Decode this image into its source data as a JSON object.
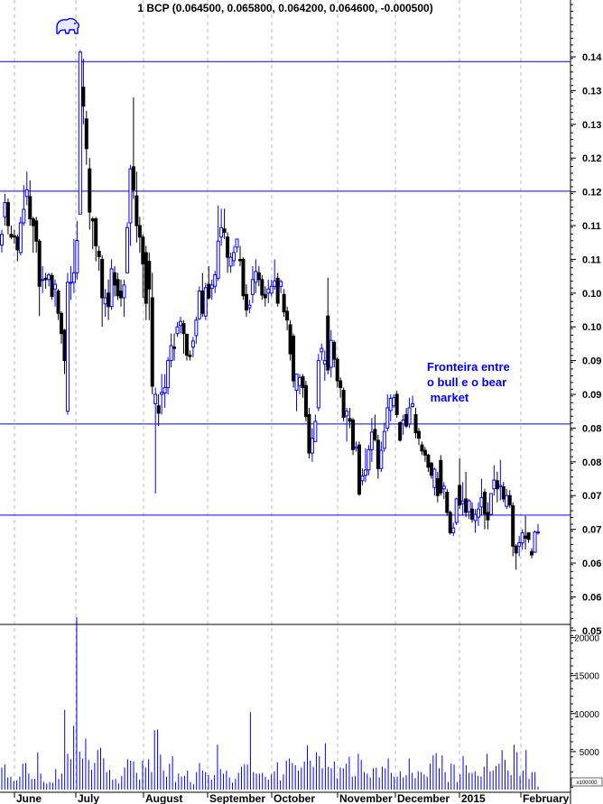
{
  "title": "1 BCP (0.064500, 0.065800, 0.064200, 0.064600, -0.000500)",
  "annotation": {
    "lines": [
      "Fronteira entre",
      "o bull e o bear",
      " market"
    ]
  },
  "icons": {
    "logo": "bear-icon"
  },
  "colors": {
    "up": "#0000ff",
    "down": "#000000",
    "lines": "#0000ff",
    "volume": "#0000ff",
    "grid": "#bbbbbb"
  },
  "chart_data": {
    "type": "candlestick",
    "title": "1 BCP (0.064500, 0.065800, 0.064200, 0.064600, -0.000500)",
    "x_labels": [
      "June",
      "July",
      "August",
      "September",
      "October",
      "November",
      "December",
      "2015",
      "February"
    ],
    "y_ticks": [
      0.135,
      0.13,
      0.125,
      0.12,
      0.115,
      0.11,
      0.105,
      0.1,
      0.095,
      0.09,
      0.085,
      0.08,
      0.075,
      0.07,
      0.065,
      0.06,
      0.055,
      0.05
    ],
    "y_tick_labels": [
      "0.14",
      "0.13",
      "0.13",
      "0.12",
      "0.12",
      "0.11",
      "0.11",
      "0.10",
      "0.10",
      "0.09",
      "0.09",
      "0.08",
      "0.08",
      "0.07",
      "0.07",
      "0.06",
      "0.06",
      "0.05"
    ],
    "ylim": [
      0.0505,
      0.1384
    ],
    "grid": "vertical dashed at month boundaries",
    "horizontal_lines": [
      0.1343,
      0.1151,
      0.0806,
      0.0671
    ],
    "candles_ohlc": [
      [
        0.1071,
        0.1094,
        0.106,
        0.1087
      ],
      [
        0.1113,
        0.1147,
        0.11,
        0.1134
      ],
      [
        0.1134,
        0.114,
        0.1087,
        0.11
      ],
      [
        0.1087,
        0.11,
        0.108,
        0.1083
      ],
      [
        0.1085,
        0.1094,
        0.1073,
        0.1083
      ],
      [
        0.1083,
        0.1087,
        0.1047,
        0.1064
      ],
      [
        0.106,
        0.1113,
        0.1056,
        0.1104
      ],
      [
        0.1104,
        0.116,
        0.11,
        0.1124
      ],
      [
        0.1143,
        0.118,
        0.113,
        0.1153
      ],
      [
        0.1143,
        0.1167,
        0.11,
        0.111
      ],
      [
        0.111,
        0.1113,
        0.106,
        0.11
      ],
      [
        0.1107,
        0.1113,
        0.106,
        0.1077
      ],
      [
        0.1077,
        0.108,
        0.0966,
        0.101
      ],
      [
        0.102,
        0.104,
        0.1,
        0.102
      ],
      [
        0.1022,
        0.103,
        0.1006,
        0.102
      ],
      [
        0.102,
        0.103,
        0.101,
        0.1027
      ],
      [
        0.1026,
        0.103,
        0.099,
        0.0995
      ],
      [
        0.1006,
        0.102,
        0.098,
        0.1013
      ],
      [
        0.1003,
        0.1006,
        0.096,
        0.097
      ],
      [
        0.097,
        0.0973,
        0.0925,
        0.094
      ],
      [
        0.0945,
        0.0947,
        0.088,
        0.09
      ],
      [
        0.0825,
        0.103,
        0.082,
        0.1016
      ],
      [
        0.1016,
        0.104,
        0.099,
        0.1016
      ],
      [
        0.1016,
        0.108,
        0.1,
        0.103
      ],
      [
        0.103,
        0.1107,
        0.102,
        0.1078
      ],
      [
        0.1117,
        0.136,
        0.1117,
        0.1357
      ],
      [
        0.1305,
        0.1347,
        0.125,
        0.1277
      ],
      [
        0.1258,
        0.127,
        0.119,
        0.1214
      ],
      [
        0.1184,
        0.12,
        0.1094,
        0.112
      ],
      [
        0.111,
        0.1113,
        0.1065,
        0.1107
      ],
      [
        0.111,
        0.1113,
        0.1047,
        0.107
      ],
      [
        0.1062,
        0.107,
        0.1033,
        0.1054
      ],
      [
        0.105,
        0.1056,
        0.095,
        0.0993
      ],
      [
        0.0984,
        0.1006,
        0.0965,
        0.0993
      ],
      [
        0.1,
        0.102,
        0.096,
        0.098
      ],
      [
        0.098,
        0.105,
        0.0975,
        0.1036
      ],
      [
        0.103,
        0.104,
        0.0995,
        0.1012
      ],
      [
        0.102,
        0.103,
        0.099,
        0.0996
      ],
      [
        0.1003,
        0.102,
        0.098,
        0.0993
      ],
      [
        0.0993,
        0.102,
        0.0965,
        0.1012
      ],
      [
        0.103,
        0.1105,
        0.103,
        0.1097
      ],
      [
        0.1104,
        0.119,
        0.107,
        0.1184
      ],
      [
        0.1187,
        0.129,
        0.114,
        0.1153
      ],
      [
        0.1144,
        0.118,
        0.1075,
        0.11
      ],
      [
        0.11,
        0.1113,
        0.106,
        0.1083
      ],
      [
        0.1083,
        0.1087,
        0.0993,
        0.1043
      ],
      [
        0.106,
        0.107,
        0.096,
        0.0985
      ],
      [
        0.1047,
        0.106,
        0.096,
        0.1006
      ],
      [
        0.0993,
        0.103,
        0.085,
        0.0862
      ],
      [
        0.0836,
        0.086,
        0.0703,
        0.085
      ],
      [
        0.0833,
        0.085,
        0.0803,
        0.0822
      ],
      [
        0.085,
        0.088,
        0.082,
        0.0853
      ],
      [
        0.0852,
        0.088,
        0.083,
        0.086
      ],
      [
        0.086,
        0.0905,
        0.085,
        0.09
      ],
      [
        0.09,
        0.094,
        0.089,
        0.0922
      ],
      [
        0.092,
        0.094,
        0.09,
        0.0918
      ],
      [
        0.094,
        0.0957,
        0.0935,
        0.095
      ],
      [
        0.0952,
        0.0965,
        0.094,
        0.0958
      ],
      [
        0.0955,
        0.096,
        0.091,
        0.094
      ],
      [
        0.0939,
        0.094,
        0.09,
        0.0908
      ],
      [
        0.0908,
        0.0915,
        0.09,
        0.0906
      ],
      [
        0.092,
        0.0935,
        0.0905,
        0.0929
      ],
      [
        0.0937,
        0.0965,
        0.0925,
        0.096
      ],
      [
        0.0962,
        0.101,
        0.096,
        0.1003
      ],
      [
        0.1003,
        0.103,
        0.0965,
        0.097
      ],
      [
        0.0966,
        0.1015,
        0.096,
        0.1008
      ],
      [
        0.1013,
        0.104,
        0.099,
        0.0993
      ],
      [
        0.1007,
        0.102,
        0.099,
        0.1012
      ],
      [
        0.101,
        0.1033,
        0.1,
        0.1027
      ],
      [
        0.1022,
        0.113,
        0.1018,
        0.1077
      ],
      [
        0.1083,
        0.1125,
        0.107,
        0.1097
      ],
      [
        0.1095,
        0.1125,
        0.108,
        0.109
      ],
      [
        0.1083,
        0.109,
        0.103,
        0.1053
      ],
      [
        0.104,
        0.106,
        0.103,
        0.1053
      ],
      [
        0.1048,
        0.107,
        0.104,
        0.106
      ],
      [
        0.1068,
        0.108,
        0.106,
        0.108
      ],
      [
        0.105,
        0.107,
        0.104,
        0.1048
      ],
      [
        0.105,
        0.1053,
        0.099,
        0.0996
      ],
      [
        0.0998,
        0.1013,
        0.0965,
        0.0975
      ],
      [
        0.0978,
        0.099,
        0.097,
        0.0982
      ],
      [
        0.0998,
        0.104,
        0.0985,
        0.102
      ],
      [
        0.1016,
        0.105,
        0.1,
        0.1032
      ],
      [
        0.103,
        0.104,
        0.101,
        0.102
      ],
      [
        0.102,
        0.1027,
        0.099,
        0.0997
      ],
      [
        0.0998,
        0.101,
        0.098,
        0.0993
      ],
      [
        0.1,
        0.102,
        0.0985,
        0.1006
      ],
      [
        0.1,
        0.102,
        0.0995,
        0.101
      ],
      [
        0.101,
        0.105,
        0.1005,
        0.1018
      ],
      [
        0.1022,
        0.103,
        0.098,
        0.0985
      ],
      [
        0.101,
        0.102,
        0.1,
        0.1017
      ],
      [
        0.0998,
        0.1006,
        0.0965,
        0.0972
      ],
      [
        0.0973,
        0.098,
        0.0945,
        0.096
      ],
      [
        0.0953,
        0.096,
        0.09,
        0.091
      ],
      [
        0.0936,
        0.094,
        0.086,
        0.087
      ],
      [
        0.0856,
        0.088,
        0.0825,
        0.088
      ],
      [
        0.0863,
        0.088,
        0.085,
        0.0875
      ],
      [
        0.0876,
        0.088,
        0.0845,
        0.086
      ],
      [
        0.0863,
        0.087,
        0.081,
        0.0817
      ],
      [
        0.082,
        0.083,
        0.0755,
        0.0763
      ],
      [
        0.0763,
        0.08,
        0.075,
        0.0785
      ],
      [
        0.078,
        0.082,
        0.078,
        0.081
      ],
      [
        0.083,
        0.091,
        0.0825,
        0.09
      ],
      [
        0.0913,
        0.0925,
        0.09,
        0.0918
      ],
      [
        0.0895,
        0.0915,
        0.087,
        0.09
      ],
      [
        0.0966,
        0.1023,
        0.088,
        0.0886
      ],
      [
        0.089,
        0.0945,
        0.0875,
        0.093
      ],
      [
        0.0927,
        0.093,
        0.089,
        0.0902
      ],
      [
        0.0902,
        0.0905,
        0.086,
        0.087
      ],
      [
        0.087,
        0.0875,
        0.0845,
        0.086
      ],
      [
        0.0856,
        0.086,
        0.081,
        0.0816
      ],
      [
        0.0818,
        0.083,
        0.078,
        0.0825
      ],
      [
        0.0814,
        0.083,
        0.08,
        0.081
      ],
      [
        0.0812,
        0.0815,
        0.076,
        0.0768
      ],
      [
        0.077,
        0.078,
        0.0765,
        0.0772
      ],
      [
        0.0775,
        0.078,
        0.07,
        0.0702
      ],
      [
        0.0722,
        0.074,
        0.0715,
        0.0729
      ],
      [
        0.073,
        0.077,
        0.072,
        0.0738
      ],
      [
        0.0738,
        0.0775,
        0.073,
        0.0768
      ],
      [
        0.0768,
        0.0815,
        0.075,
        0.0794
      ],
      [
        0.0798,
        0.082,
        0.078,
        0.0783
      ],
      [
        0.0782,
        0.079,
        0.0725,
        0.074
      ],
      [
        0.074,
        0.078,
        0.0735,
        0.0767
      ],
      [
        0.077,
        0.0808,
        0.0765,
        0.0795
      ],
      [
        0.08,
        0.085,
        0.0795,
        0.083
      ],
      [
        0.0826,
        0.085,
        0.081,
        0.0844
      ],
      [
        0.0833,
        0.085,
        0.083,
        0.0845
      ],
      [
        0.085,
        0.0855,
        0.0815,
        0.082
      ],
      [
        0.0808,
        0.081,
        0.078,
        0.0782
      ],
      [
        0.0806,
        0.082,
        0.079,
        0.0812
      ],
      [
        0.082,
        0.083,
        0.08,
        0.0803
      ],
      [
        0.0806,
        0.0845,
        0.08,
        0.083
      ],
      [
        0.0832,
        0.0848,
        0.083,
        0.0836
      ],
      [
        0.082,
        0.083,
        0.0785,
        0.0793
      ],
      [
        0.0795,
        0.08,
        0.0775,
        0.0785
      ],
      [
        0.0775,
        0.078,
        0.076,
        0.0766
      ],
      [
        0.0767,
        0.0772,
        0.075,
        0.076
      ],
      [
        0.076,
        0.0762,
        0.0735,
        0.0742
      ],
      [
        0.0748,
        0.075,
        0.0725,
        0.073
      ],
      [
        0.0712,
        0.0742,
        0.07,
        0.0739
      ],
      [
        0.0725,
        0.0735,
        0.069,
        0.07
      ],
      [
        0.0752,
        0.076,
        0.07,
        0.0704
      ],
      [
        0.071,
        0.072,
        0.0695,
        0.0714
      ],
      [
        0.0705,
        0.071,
        0.067,
        0.0675
      ],
      [
        0.0675,
        0.0678,
        0.0642,
        0.0645
      ],
      [
        0.0645,
        0.066,
        0.064,
        0.0652
      ],
      [
        0.066,
        0.0697,
        0.0656,
        0.0695
      ],
      [
        0.0715,
        0.0755,
        0.068,
        0.0686
      ],
      [
        0.0688,
        0.072,
        0.067,
        0.0692
      ],
      [
        0.0695,
        0.0735,
        0.0668,
        0.0675
      ],
      [
        0.0676,
        0.0695,
        0.0665,
        0.0692
      ],
      [
        0.068,
        0.069,
        0.066,
        0.0665
      ],
      [
        0.0663,
        0.068,
        0.0645,
        0.0672
      ],
      [
        0.0668,
        0.069,
        0.0655,
        0.068
      ],
      [
        0.0683,
        0.0725,
        0.067,
        0.0697
      ],
      [
        0.0705,
        0.071,
        0.065,
        0.0673
      ],
      [
        0.0675,
        0.069,
        0.065,
        0.0664
      ],
      [
        0.0672,
        0.0703,
        0.067,
        0.0703
      ],
      [
        0.071,
        0.0745,
        0.07,
        0.0723
      ],
      [
        0.0722,
        0.0735,
        0.069,
        0.071
      ],
      [
        0.0713,
        0.0753,
        0.0693,
        0.0715
      ],
      [
        0.0713,
        0.072,
        0.069,
        0.0695
      ],
      [
        0.0684,
        0.071,
        0.068,
        0.07
      ],
      [
        0.07,
        0.0708,
        0.0682,
        0.0686
      ],
      [
        0.0685,
        0.069,
        0.061,
        0.0625
      ],
      [
        0.0625,
        0.0628,
        0.059,
        0.0615
      ],
      [
        0.0625,
        0.064,
        0.061,
        0.063
      ],
      [
        0.063,
        0.065,
        0.062,
        0.0645
      ],
      [
        0.064,
        0.067,
        0.062,
        0.0637
      ],
      [
        0.0645,
        0.0645,
        0.063,
        0.0635
      ],
      [
        0.0617,
        0.0622,
        0.0607,
        0.0612
      ],
      [
        0.0616,
        0.0648,
        0.0615,
        0.0646
      ],
      [
        0.0645,
        0.0658,
        0.0642,
        0.0646
      ]
    ],
    "volume": {
      "y_ticks": [
        20000,
        15000,
        10000,
        5000
      ],
      "y_tick_labels": [
        "20000",
        "15000",
        "10000",
        "5000"
      ],
      "multiplier_label": "x100000",
      "values": [
        2900,
        3300,
        1600,
        1700,
        1100,
        1200,
        1700,
        3400,
        3500,
        2100,
        1400,
        1400,
        4900,
        2100,
        1000,
        800,
        1000,
        900,
        2700,
        1400,
        2100,
        10500,
        4700,
        4000,
        8400,
        22700,
        5000,
        4100,
        6700,
        3900,
        2600,
        3500,
        5200,
        5500,
        4100,
        2300,
        2600,
        1300,
        1400,
        800,
        1800,
        2900,
        4000,
        3800,
        3700,
        2200,
        1300,
        3800,
        2900,
        4000,
        2300,
        7800,
        7900,
        4600,
        2500,
        1700,
        3400,
        4400,
        1000,
        2100,
        1700,
        1800,
        2500,
        1000,
        700,
        2300,
        3500,
        2500,
        2300,
        1900,
        1300,
        1900,
        5900,
        2700,
        2100,
        2500,
        1600,
        900,
        1400,
        2200,
        3000,
        3300,
        3300,
        10200,
        2300,
        2100,
        2100,
        2200,
        1700,
        1300,
        2000,
        2400,
        3600,
        1200,
        2000,
        3800,
        4100,
        3500,
        3200,
        2500,
        2900,
        3700,
        5800,
        3800,
        3000,
        4900,
        4400,
        2800,
        6100,
        3000,
        2800,
        3700,
        1500,
        2900,
        2800,
        3400,
        4300,
        1700,
        1800,
        4700,
        3900,
        2300,
        2100,
        1600,
        2800,
        2900,
        1600,
        3000,
        2800,
        4100,
        2200,
        1700,
        1700,
        2400,
        1600,
        1900,
        4100,
        2200,
        1500,
        2400,
        2300,
        2000,
        1700,
        3400,
        4500,
        4800,
        2800,
        4500,
        2300,
        1000,
        3400,
        3300,
        1000,
        2000,
        4400,
        3200,
        2200,
        2200,
        2400,
        1800,
        1700,
        3000,
        4700,
        2400,
        2500,
        3100,
        3400,
        5200,
        3900,
        2500,
        1900,
        5900,
        4900,
        1800,
        2500,
        5200,
        1400,
        2300,
        2300,
        400
      ]
    }
  }
}
